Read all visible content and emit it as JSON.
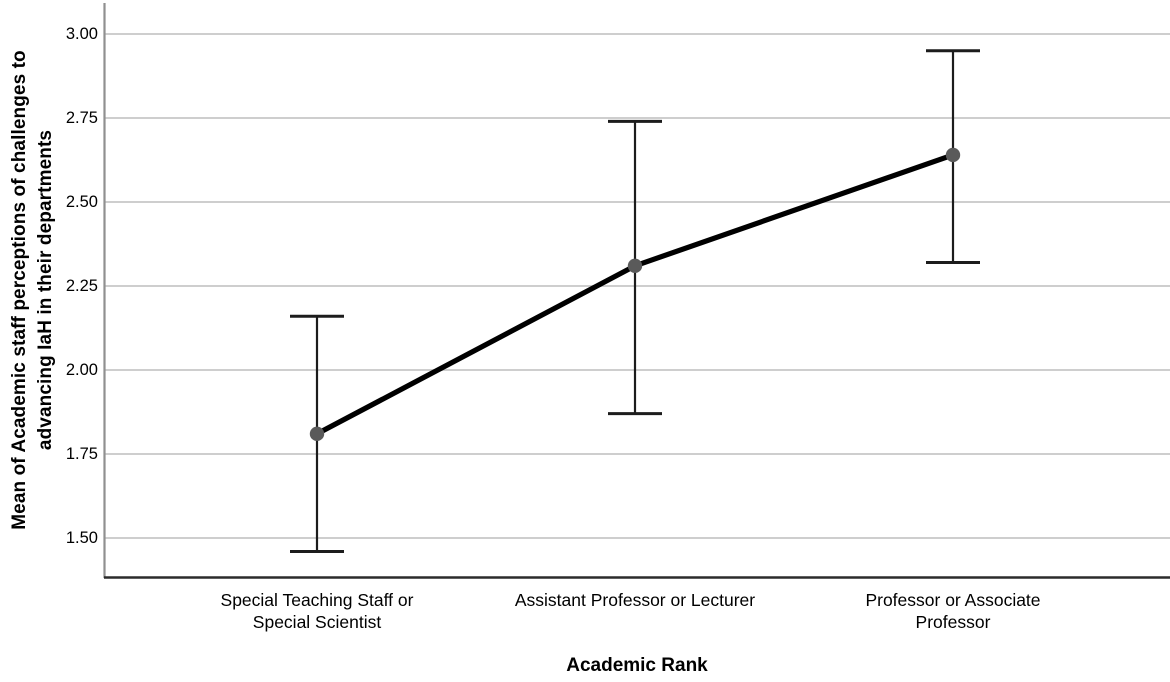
{
  "chart_data": {
    "type": "line",
    "title": "",
    "xlabel": "Academic Rank",
    "ylabel": "Mean of Academic staff perceptions of challenges to advancing IaH in their departments",
    "ylabel_lines": [
      "Mean of Academic staff perceptions of challenges to",
      "advancing IaH in their departments"
    ],
    "categories": [
      "Special Teaching Staff or Special Scientist",
      "Assistant Professor or Lecturer",
      "Professor or Associate Professor"
    ],
    "category_label_lines": [
      [
        "Special Teaching Staff or",
        "Special Scientist"
      ],
      [
        "Assistant Professor or Lecturer"
      ],
      [
        "Professor or Associate",
        "Professor"
      ]
    ],
    "series": [
      {
        "name": "Mean",
        "values": [
          1.81,
          2.31,
          2.64
        ]
      }
    ],
    "error_bars": [
      {
        "low": 1.46,
        "high": 2.16
      },
      {
        "low": 1.87,
        "high": 2.74
      },
      {
        "low": 2.32,
        "high": 2.95
      }
    ],
    "yticks": [
      1.5,
      1.75,
      2.0,
      2.25,
      2.5,
      2.75,
      3.0
    ],
    "ytick_labels": [
      "1.50",
      "1.75",
      "2.00",
      "2.25",
      "2.50",
      "2.75",
      "3.00"
    ],
    "ylim": [
      1.38,
      3.09
    ],
    "grid": "horizontal",
    "legend": "none",
    "marker": "circle",
    "colors": {
      "line": "#000000",
      "marker": "#5a5a5a",
      "error_bar": "#1c1c1c",
      "gridline": "#c7c7c7",
      "y_axis_line": "#909090",
      "x_axis_line": "#2b2b2b",
      "text": "#000000",
      "background": "#ffffff"
    }
  }
}
